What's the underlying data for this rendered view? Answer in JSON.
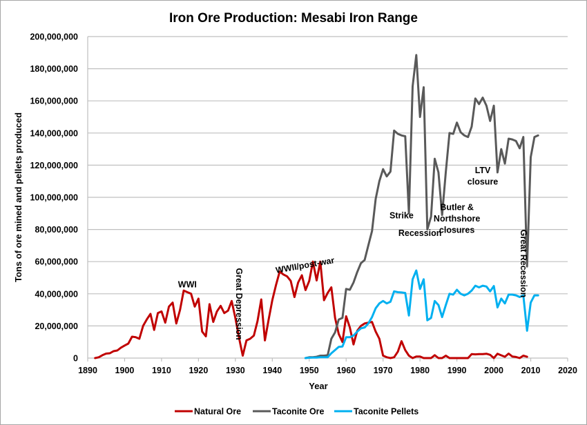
{
  "chart_data": {
    "type": "line",
    "title": "Iron Ore Production: Mesabi Iron Range",
    "xlabel": "Year",
    "ylabel": "Tons of ore mined and pellets produced",
    "xlim": [
      1890,
      2020
    ],
    "ylim": [
      0,
      200000000
    ],
    "x_ticks": [
      1890,
      1900,
      1910,
      1920,
      1930,
      1940,
      1950,
      1960,
      1970,
      1980,
      1990,
      2000,
      2010,
      2020
    ],
    "x_tick_labels": [
      "1890",
      "1900",
      "1910",
      "1920",
      "1930",
      "1940",
      "1950",
      "1960",
      "1970",
      "1980",
      "1990",
      "2000",
      "2010",
      "2020"
    ],
    "y_ticks": [
      0,
      20000000,
      40000000,
      60000000,
      80000000,
      100000000,
      120000000,
      140000000,
      160000000,
      180000000,
      200000000
    ],
    "y_tick_labels": [
      "0",
      "20,000,000",
      "40,000,000",
      "60,000,000",
      "80,000,000",
      "100,000,000",
      "120,000,000",
      "140,000,000",
      "160,000,000",
      "180,000,000",
      "200,000,000"
    ],
    "grid": "horizontal",
    "legend_position": "bottom",
    "series": [
      {
        "name": "Natural Ore",
        "color": "#c00000",
        "points": [
          [
            1892,
            0
          ],
          [
            1893,
            500000
          ],
          [
            1894,
            1800000
          ],
          [
            1895,
            2800000
          ],
          [
            1896,
            3000000
          ],
          [
            1897,
            4300000
          ],
          [
            1898,
            4700000
          ],
          [
            1899,
            6500000
          ],
          [
            1900,
            7800000
          ],
          [
            1901,
            9000000
          ],
          [
            1902,
            13300000
          ],
          [
            1903,
            13000000
          ],
          [
            1904,
            12000000
          ],
          [
            1905,
            20000000
          ],
          [
            1906,
            24000000
          ],
          [
            1907,
            27500000
          ],
          [
            1908,
            17500000
          ],
          [
            1909,
            28000000
          ],
          [
            1910,
            29000000
          ],
          [
            1911,
            22000000
          ],
          [
            1912,
            32000000
          ],
          [
            1913,
            34500000
          ],
          [
            1914,
            21500000
          ],
          [
            1915,
            30000000
          ],
          [
            1916,
            42000000
          ],
          [
            1917,
            41000000
          ],
          [
            1918,
            40000000
          ],
          [
            1919,
            32000000
          ],
          [
            1920,
            37000000
          ],
          [
            1921,
            16500000
          ],
          [
            1922,
            13500000
          ],
          [
            1923,
            33500000
          ],
          [
            1924,
            22500000
          ],
          [
            1925,
            29000000
          ],
          [
            1926,
            32500000
          ],
          [
            1927,
            28000000
          ],
          [
            1928,
            29500000
          ],
          [
            1929,
            35500000
          ],
          [
            1930,
            25000000
          ],
          [
            1931,
            12500000
          ],
          [
            1932,
            1500000
          ],
          [
            1933,
            11000000
          ],
          [
            1934,
            12000000
          ],
          [
            1935,
            14000000
          ],
          [
            1936,
            23000000
          ],
          [
            1937,
            36500000
          ],
          [
            1938,
            11000000
          ],
          [
            1939,
            24000000
          ],
          [
            1940,
            36000000
          ],
          [
            1941,
            45500000
          ],
          [
            1942,
            53800000
          ],
          [
            1943,
            52000000
          ],
          [
            1944,
            50800000
          ],
          [
            1945,
            48000000
          ],
          [
            1946,
            38000000
          ],
          [
            1947,
            47000000
          ],
          [
            1948,
            51500000
          ],
          [
            1949,
            42300000
          ],
          [
            1950,
            48000000
          ],
          [
            1951,
            60000000
          ],
          [
            1952,
            48300000
          ],
          [
            1953,
            60000000
          ],
          [
            1954,
            36000000
          ],
          [
            1955,
            40500000
          ],
          [
            1956,
            44000000
          ],
          [
            1957,
            25000000
          ],
          [
            1958,
            15000000
          ],
          [
            1959,
            10000000
          ],
          [
            1960,
            26000000
          ],
          [
            1961,
            19000000
          ],
          [
            1962,
            8500000
          ],
          [
            1963,
            17000000
          ],
          [
            1964,
            20000000
          ],
          [
            1965,
            21500000
          ],
          [
            1966,
            22000000
          ],
          [
            1967,
            22500000
          ],
          [
            1968,
            16500000
          ],
          [
            1969,
            12000000
          ],
          [
            1970,
            1500000
          ],
          [
            1971,
            500000
          ],
          [
            1972,
            0
          ],
          [
            1973,
            500000
          ],
          [
            1974,
            4000000
          ],
          [
            1975,
            10500000
          ],
          [
            1976,
            5000000
          ],
          [
            1977,
            1500000
          ],
          [
            1978,
            0
          ],
          [
            1979,
            1000000
          ],
          [
            1980,
            1000000
          ],
          [
            1981,
            0
          ],
          [
            1982,
            0
          ],
          [
            1983,
            0
          ],
          [
            1984,
            1800000
          ],
          [
            1985,
            0
          ],
          [
            1986,
            0
          ],
          [
            1987,
            1500000
          ],
          [
            1988,
            0
          ],
          [
            1989,
            0
          ],
          [
            1990,
            0
          ],
          [
            1991,
            0
          ],
          [
            1992,
            0
          ],
          [
            1993,
            0
          ],
          [
            1994,
            2500000
          ],
          [
            1995,
            2300000
          ],
          [
            1996,
            2500000
          ],
          [
            1997,
            2500000
          ],
          [
            1998,
            2700000
          ],
          [
            1999,
            2000000
          ],
          [
            2000,
            0
          ],
          [
            2001,
            2700000
          ],
          [
            2002,
            1700000
          ],
          [
            2003,
            800000
          ],
          [
            2004,
            2800000
          ],
          [
            2005,
            1000000
          ],
          [
            2006,
            700000
          ],
          [
            2007,
            0
          ],
          [
            2008,
            1500000
          ],
          [
            2009,
            800000
          ]
        ]
      },
      {
        "name": "Taconite Ore",
        "color": "#595959",
        "points": [
          [
            1949,
            0
          ],
          [
            1950,
            500000
          ],
          [
            1951,
            500000
          ],
          [
            1952,
            800000
          ],
          [
            1953,
            1500000
          ],
          [
            1954,
            1500000
          ],
          [
            1955,
            1800000
          ],
          [
            1956,
            12000000
          ],
          [
            1957,
            16000000
          ],
          [
            1958,
            24000000
          ],
          [
            1959,
            25000000
          ],
          [
            1960,
            43000000
          ],
          [
            1961,
            42500000
          ],
          [
            1962,
            47000000
          ],
          [
            1963,
            53500000
          ],
          [
            1964,
            59000000
          ],
          [
            1965,
            61000000
          ],
          [
            1966,
            70000000
          ],
          [
            1967,
            79000000
          ],
          [
            1968,
            99000000
          ],
          [
            1969,
            110000000
          ],
          [
            1970,
            117500000
          ],
          [
            1971,
            113000000
          ],
          [
            1972,
            116000000
          ],
          [
            1973,
            141500000
          ],
          [
            1974,
            139500000
          ],
          [
            1975,
            138500000
          ],
          [
            1976,
            138000000
          ],
          [
            1977,
            90000000
          ],
          [
            1978,
            169000000
          ],
          [
            1979,
            188500000
          ],
          [
            1980,
            150000000
          ],
          [
            1981,
            168500000
          ],
          [
            1982,
            80000000
          ],
          [
            1983,
            88000000
          ],
          [
            1984,
            124000000
          ],
          [
            1985,
            115500000
          ],
          [
            1986,
            89000000
          ],
          [
            1987,
            116000000
          ],
          [
            1988,
            140000000
          ],
          [
            1989,
            139500000
          ],
          [
            1990,
            146500000
          ],
          [
            1991,
            140500000
          ],
          [
            1992,
            138500000
          ],
          [
            1993,
            137500000
          ],
          [
            1994,
            144000000
          ],
          [
            1995,
            161500000
          ],
          [
            1996,
            158000000
          ],
          [
            1997,
            162000000
          ],
          [
            1998,
            157000000
          ],
          [
            1999,
            147500000
          ],
          [
            2000,
            157000000
          ],
          [
            2001,
            115500000
          ],
          [
            2002,
            130000000
          ],
          [
            2003,
            121000000
          ],
          [
            2004,
            136500000
          ],
          [
            2005,
            136000000
          ],
          [
            2006,
            135000000
          ],
          [
            2007,
            130500000
          ],
          [
            2008,
            137500000
          ],
          [
            2009,
            57000000
          ],
          [
            2010,
            125000000
          ],
          [
            2011,
            137500000
          ],
          [
            2012,
            138500000
          ]
        ]
      },
      {
        "name": "Taconite Pellets",
        "color": "#00b0f0",
        "points": [
          [
            1949,
            0
          ],
          [
            1950,
            200000
          ],
          [
            1951,
            300000
          ],
          [
            1952,
            300000
          ],
          [
            1953,
            500000
          ],
          [
            1954,
            500000
          ],
          [
            1955,
            500000
          ],
          [
            1956,
            3000000
          ],
          [
            1957,
            5000000
          ],
          [
            1958,
            7000000
          ],
          [
            1959,
            7200000
          ],
          [
            1960,
            13000000
          ],
          [
            1961,
            13000000
          ],
          [
            1962,
            14000000
          ],
          [
            1963,
            16500000
          ],
          [
            1964,
            18500000
          ],
          [
            1965,
            19000000
          ],
          [
            1966,
            21500000
          ],
          [
            1967,
            25500000
          ],
          [
            1968,
            31000000
          ],
          [
            1969,
            34000000
          ],
          [
            1970,
            35500000
          ],
          [
            1971,
            34000000
          ],
          [
            1972,
            35000000
          ],
          [
            1973,
            41500000
          ],
          [
            1974,
            41000000
          ],
          [
            1975,
            40800000
          ],
          [
            1976,
            40500000
          ],
          [
            1977,
            26500000
          ],
          [
            1978,
            49000000
          ],
          [
            1979,
            54500000
          ],
          [
            1980,
            43000000
          ],
          [
            1981,
            49000000
          ],
          [
            1982,
            23500000
          ],
          [
            1983,
            25000000
          ],
          [
            1984,
            35500000
          ],
          [
            1985,
            33000000
          ],
          [
            1986,
            25500000
          ],
          [
            1987,
            33000000
          ],
          [
            1988,
            40000000
          ],
          [
            1989,
            39500000
          ],
          [
            1990,
            42500000
          ],
          [
            1991,
            40000000
          ],
          [
            1992,
            39000000
          ],
          [
            1993,
            40000000
          ],
          [
            1994,
            42000000
          ],
          [
            1995,
            45000000
          ],
          [
            1996,
            44000000
          ],
          [
            1997,
            45000000
          ],
          [
            1998,
            44500000
          ],
          [
            1999,
            41500000
          ],
          [
            2000,
            44800000
          ],
          [
            2001,
            31500000
          ],
          [
            2002,
            37000000
          ],
          [
            2003,
            34000000
          ],
          [
            2004,
            39500000
          ],
          [
            2005,
            39500000
          ],
          [
            2006,
            39000000
          ],
          [
            2007,
            38000000
          ],
          [
            2008,
            39000000
          ],
          [
            2009,
            17000000
          ],
          [
            2010,
            34500000
          ],
          [
            2011,
            39000000
          ],
          [
            2012,
            39000000
          ]
        ]
      }
    ],
    "annotations": [
      {
        "text": "WWI",
        "x": 1917,
        "y": 44000000,
        "rotation": "horizontal"
      },
      {
        "text": "Great Depression",
        "x": 1931,
        "y": 56000000,
        "rotation": "vertical"
      },
      {
        "text": "WWII/post-war",
        "x": 1949,
        "y": 56000000,
        "rotation": "angled"
      },
      {
        "text": "Strike",
        "x": 1975,
        "y": 87000000,
        "rotation": "horizontal"
      },
      {
        "text": "Recession",
        "x": 1980,
        "y": 76000000,
        "rotation": "horizontal"
      },
      {
        "text": "Butler &",
        "x": 1990,
        "y": 92000000,
        "rotation": "horizontal"
      },
      {
        "text": "Northshore",
        "x": 1990,
        "y": 85000000,
        "rotation": "horizontal"
      },
      {
        "text": "closures",
        "x": 1990,
        "y": 78000000,
        "rotation": "horizontal"
      },
      {
        "text": "LTV",
        "x": 1997,
        "y": 115000000,
        "rotation": "horizontal"
      },
      {
        "text": "closure",
        "x": 1997,
        "y": 108000000,
        "rotation": "horizontal"
      },
      {
        "text": "Great Recession",
        "x": 2008,
        "y": 80000000,
        "rotation": "vertical"
      }
    ]
  }
}
